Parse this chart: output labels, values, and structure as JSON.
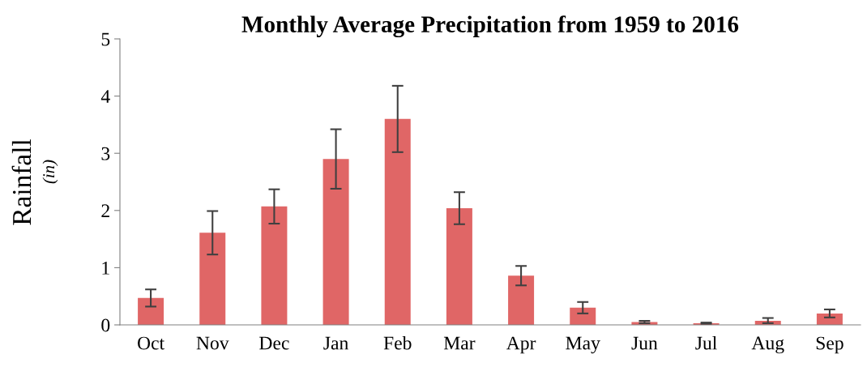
{
  "chart_data": {
    "type": "bar",
    "title": "Monthly Average Precipitation from 1959 to 2016",
    "ylabel": "Rainfall\n(in)",
    "categories": [
      "Oct",
      "Nov",
      "Dec",
      "Jan",
      "Feb",
      "Mar",
      "Apr",
      "May",
      "Jun",
      "Jul",
      "Aug",
      "Sep"
    ],
    "values": [
      0.47,
      1.61,
      2.07,
      2.9,
      3.6,
      2.04,
      0.86,
      0.3,
      0.05,
      0.03,
      0.07,
      0.2
    ],
    "errors": [
      0.15,
      0.38,
      0.3,
      0.52,
      0.58,
      0.28,
      0.17,
      0.1,
      0.02,
      0.01,
      [
        0.04,
        0.05
      ],
      0.07
    ],
    "color": "#e06666",
    "ylim": [
      0,
      5
    ],
    "yticks": [
      0,
      1,
      2,
      3,
      4,
      5
    ],
    "grid": false,
    "legend": false
  }
}
